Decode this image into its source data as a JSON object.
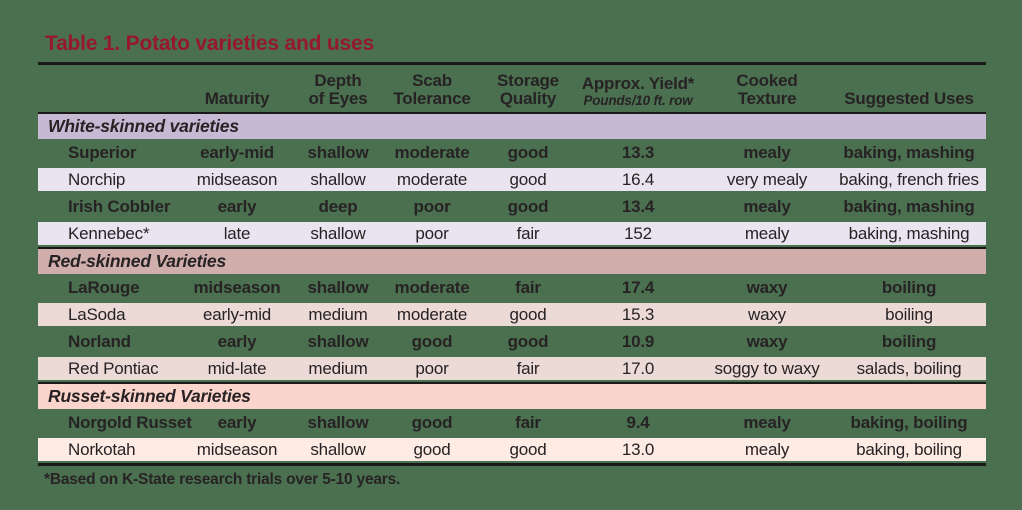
{
  "colors": {
    "background": "#4a7050",
    "title": "#96182f",
    "text": "#272224",
    "rule": "#1b1819"
  },
  "title": "Table 1. Potato varieties and uses",
  "table": {
    "headers": [
      "",
      "Maturity",
      "Depth\nof Eyes",
      "Scab\nTolerance",
      "Storage\nQuality",
      "Approx. Yield*",
      "Cooked\nTexture",
      "Suggested Uses"
    ],
    "yield_subtitle": "Pounds/10 ft. row",
    "column_keys": [
      "variety-name",
      "maturity",
      "depth-of-eyes",
      "scab-tolerance",
      "storage-quality",
      "approx-yield",
      "cooked-texture",
      "suggested-uses"
    ],
    "sections": [
      {
        "label": "White-skinned varieties",
        "band_color": "#c5b9d3",
        "row_color": "#e9e4ef",
        "rows": [
          [
            "Superior",
            "early-mid",
            "shallow",
            "moderate",
            "good",
            "13.3",
            "mealy",
            "baking, mashing"
          ],
          [
            "Norchip",
            "midseason",
            "shallow",
            "moderate",
            "good",
            "16.4",
            "very mealy",
            "baking, french fries"
          ],
          [
            "Irish Cobbler",
            "early",
            "deep",
            "poor",
            "good",
            "13.4",
            "mealy",
            "baking, mashing"
          ],
          [
            "Kennebec*",
            "late",
            "shallow",
            "poor",
            "fair",
            "152",
            "mealy",
            "baking, mashing"
          ]
        ]
      },
      {
        "label": "Red-skinned Varieties",
        "band_color": "#d0aeab",
        "row_color": "#ebdad6",
        "rows": [
          [
            "LaRouge",
            "midseason",
            "shallow",
            "moderate",
            "fair",
            "17.4",
            "waxy",
            "boiling"
          ],
          [
            "LaSoda",
            "early-mid",
            "medium",
            "moderate",
            "good",
            "15.3",
            "waxy",
            "boiling"
          ],
          [
            "Norland",
            "early",
            "shallow",
            "good",
            "good",
            "10.9",
            "waxy",
            "boiling"
          ],
          [
            "Red Pontiac",
            "mid-late",
            "medium",
            "poor",
            "fair",
            "17.0",
            "soggy to waxy",
            "salads, boiling"
          ]
        ]
      },
      {
        "label": "Russet-skinned Varieties",
        "band_color": "#fbd4cc",
        "row_color": "#fdebe4",
        "rows": [
          [
            "Norgold Russet",
            "early",
            "shallow",
            "good",
            "fair",
            "9.4",
            "mealy",
            "baking, boiling"
          ],
          [
            "Norkotah",
            "midseason",
            "shallow",
            "good",
            "good",
            "13.0",
            "mealy",
            "baking, boiling"
          ]
        ]
      }
    ]
  },
  "footnote": "*Based on K-State research trials over 5-10 years."
}
